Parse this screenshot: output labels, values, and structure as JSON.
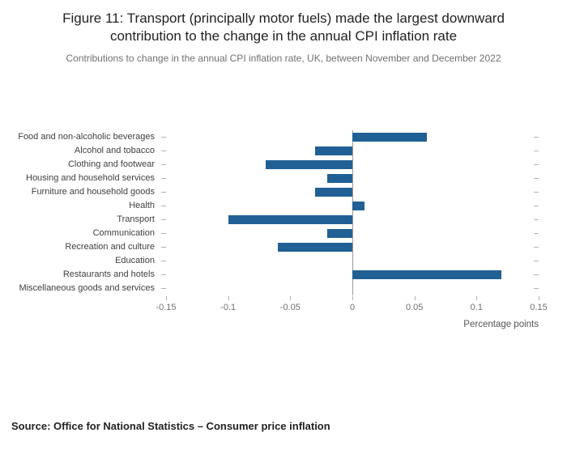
{
  "header": {
    "title": "Figure 11: Transport (principally motor fuels) made the largest downward contribution to the change in the annual CPI inflation rate",
    "subtitle": "Contributions to change in the annual CPI inflation rate, UK, between November and December 2022"
  },
  "chart_data": {
    "type": "bar",
    "orientation": "horizontal",
    "title": "Figure 11: Transport (principally motor fuels) made the largest downward contribution to the change in the annual CPI inflation rate",
    "subtitle": "Contributions to change in the annual CPI inflation rate, UK, between November and December 2022",
    "categories": [
      "Food and non-alcoholic beverages",
      "Alcohol and tobacco",
      "Clothing and footwear",
      "Housing and household services",
      "Furniture and household goods",
      "Health",
      "Transport",
      "Communication",
      "Recreation and culture",
      "Education",
      "Restaurants and hotels",
      "Miscellaneous goods and services"
    ],
    "values": [
      0.06,
      -0.03,
      -0.07,
      -0.02,
      -0.03,
      0.01,
      -0.1,
      -0.02,
      -0.06,
      0,
      0.12,
      0
    ],
    "xlabel": "Percentage points",
    "xlim": [
      -0.15,
      0.15
    ],
    "xticks": [
      -0.15,
      -0.1,
      -0.05,
      0,
      0.05,
      0.1,
      0.15
    ],
    "xtick_labels": [
      "-0.15",
      "-0.1",
      "-0.05",
      "0",
      "0.05",
      "0.1",
      "0.15"
    ],
    "bar_color": "#206095",
    "grid": false,
    "legend": "none"
  },
  "footer": {
    "source": "Source: Office for National Statistics – Consumer price inflation"
  }
}
